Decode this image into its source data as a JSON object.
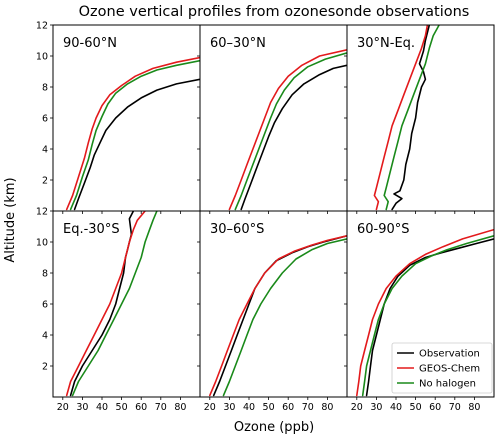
{
  "chart_data": {
    "type": "line",
    "title": "Ozone vertical profiles from ozonesonde observations",
    "xlabel": "Ozone (ppb)",
    "ylabel": "Altitude (km)",
    "xlim": [
      15,
      90
    ],
    "ylim": [
      0,
      12
    ],
    "xticks": [
      "20",
      "30",
      "40",
      "50",
      "60",
      "70",
      "80"
    ],
    "yticks": [
      "2",
      "4",
      "6",
      "8",
      "10",
      "12"
    ],
    "grid": false,
    "legend": {
      "placement": "lower-right of bottom-right panel",
      "entries": [
        {
          "name": "Observation",
          "color": "#000000"
        },
        {
          "name": "GEOS-Chem",
          "color": "#e31a1c"
        },
        {
          "name": "No halogen",
          "color": "#1a8a1a"
        }
      ]
    },
    "panels": [
      {
        "label": "90-60°N",
        "series": [
          {
            "name": "Observation",
            "color": "#000000",
            "x": [
              26,
              28,
              31,
              34,
              36,
              39,
              42,
              47,
              53,
              60,
              68,
              78,
              90
            ],
            "y": [
              0.1,
              0.8,
              1.8,
              2.8,
              3.6,
              4.4,
              5.2,
              6.0,
              6.7,
              7.3,
              7.8,
              8.2,
              8.5
            ]
          },
          {
            "name": "GEOS-Chem",
            "color": "#e31a1c",
            "x": [
              22,
              25,
              28,
              31,
              33,
              35,
              37,
              40,
              44,
              50,
              57,
              66,
              78,
              90
            ],
            "y": [
              0.1,
              1.0,
              2.2,
              3.4,
              4.4,
              5.3,
              6.0,
              6.8,
              7.5,
              8.1,
              8.7,
              9.2,
              9.6,
              9.9
            ]
          },
          {
            "name": "No halogen",
            "color": "#1a8a1a",
            "x": [
              24,
              27,
              30,
              33,
              35,
              37,
              40,
              43,
              47,
              53,
              60,
              68,
              78,
              90
            ],
            "y": [
              0.1,
              1.0,
              2.2,
              3.3,
              4.3,
              5.2,
              6.1,
              6.9,
              7.6,
              8.2,
              8.7,
              9.1,
              9.4,
              9.7
            ]
          }
        ]
      },
      {
        "label": "60–30°N",
        "series": [
          {
            "name": "Observation",
            "color": "#000000",
            "x": [
              36,
              38,
              41,
              44,
              47,
              50,
              53,
              57,
              62,
              68,
              76,
              83,
              90
            ],
            "y": [
              0.1,
              0.8,
              1.8,
              2.8,
              3.8,
              4.8,
              5.7,
              6.6,
              7.5,
              8.2,
              8.8,
              9.2,
              9.4
            ]
          },
          {
            "name": "GEOS-Chem",
            "color": "#e31a1c",
            "x": [
              30,
              33,
              36,
              39,
              42,
              45,
              48,
              51,
              55,
              60,
              67,
              76,
              90
            ],
            "y": [
              0.1,
              1.0,
              2.0,
              3.0,
              4.0,
              5.0,
              6.0,
              7.0,
              7.9,
              8.7,
              9.4,
              10.0,
              10.4
            ]
          },
          {
            "name": "No halogen",
            "color": "#1a8a1a",
            "x": [
              33,
              36,
              39,
              42,
              45,
              48,
              51,
              54,
              58,
              63,
              70,
              79,
              90
            ],
            "y": [
              0.1,
              1.0,
              2.0,
              3.0,
              4.0,
              5.0,
              6.0,
              6.9,
              7.8,
              8.6,
              9.3,
              9.8,
              10.2
            ]
          }
        ]
      },
      {
        "label": "30°N-Eq.",
        "series": [
          {
            "name": "Observation",
            "color": "#000000",
            "x": [
              38,
              40,
              43,
              39,
              42,
              44,
              45,
              47,
              48,
              50,
              51,
              53,
              55,
              54,
              52,
              54,
              55,
              57
            ],
            "y": [
              0.1,
              0.5,
              0.8,
              1.1,
              1.3,
              2.0,
              3.0,
              4.0,
              5.0,
              6.0,
              7.0,
              8.0,
              8.5,
              9.0,
              9.5,
              10.3,
              11.0,
              12.0
            ]
          },
          {
            "name": "GEOS-Chem",
            "color": "#e31a1c",
            "x": [
              30,
              31,
              29,
              30,
              32,
              34,
              36,
              38,
              41,
              44,
              47,
              50,
              53,
              55,
              56
            ],
            "y": [
              0.1,
              0.6,
              1.0,
              1.5,
              2.5,
              3.5,
              4.5,
              5.5,
              6.5,
              7.5,
              8.5,
              9.5,
              10.5,
              11.3,
              12.0
            ]
          },
          {
            "name": "No halogen",
            "color": "#1a8a1a",
            "x": [
              35,
              36,
              34,
              35,
              37,
              39,
              41,
              43,
              46,
              49,
              52,
              55,
              57,
              59,
              62
            ],
            "y": [
              0.1,
              0.6,
              1.0,
              1.5,
              2.5,
              3.5,
              4.5,
              5.5,
              6.5,
              7.5,
              8.5,
              9.5,
              10.5,
              11.3,
              12.0
            ]
          }
        ]
      },
      {
        "label": "Eq.-30°S",
        "series": [
          {
            "name": "Observation",
            "color": "#000000",
            "x": [
              24,
              26,
              30,
              35,
              40,
              44,
              47,
              49,
              51,
              52,
              53,
              54,
              55,
              54,
              56
            ],
            "y": [
              0.1,
              1.0,
              2.0,
              3.0,
              4.0,
              5.0,
              6.0,
              7.0,
              8.0,
              9.0,
              9.5,
              10.0,
              10.5,
              11.5,
              12.0
            ]
          },
          {
            "name": "GEOS-Chem",
            "color": "#e31a1c",
            "x": [
              22,
              24,
              28,
              32,
              36,
              40,
              44,
              47,
              50,
              52,
              54,
              56,
              58,
              62
            ],
            "y": [
              0.1,
              1.0,
              2.0,
              3.0,
              4.0,
              5.0,
              6.0,
              7.0,
              8.0,
              9.0,
              10.0,
              10.8,
              11.4,
              12.0
            ]
          },
          {
            "name": "No halogen",
            "color": "#1a8a1a",
            "x": [
              25,
              28,
              33,
              38,
              42,
              46,
              50,
              54,
              57,
              60,
              62,
              64,
              66,
              68
            ],
            "y": [
              0.1,
              1.0,
              2.0,
              3.0,
              4.0,
              5.0,
              6.0,
              7.0,
              8.0,
              9.0,
              10.0,
              10.7,
              11.4,
              12.0
            ]
          }
        ]
      },
      {
        "label": "30–60°S",
        "series": [
          {
            "name": "Observation",
            "color": "#000000",
            "x": [
              22,
              25,
              28,
              31,
              34,
              37,
              40,
              43,
              48,
              54,
              62,
              70,
              78,
              90
            ],
            "y": [
              0.1,
              1.0,
              2.0,
              3.0,
              4.0,
              5.0,
              6.0,
              7.0,
              8.0,
              8.8,
              9.3,
              9.7,
              10.0,
              10.4
            ]
          },
          {
            "name": "GEOS-Chem",
            "color": "#e31a1c",
            "x": [
              20,
              23,
              26,
              29,
              32,
              35,
              39,
              43,
              48,
              55,
              63,
              72,
              80,
              90
            ],
            "y": [
              0.1,
              1.0,
              2.0,
              3.0,
              4.0,
              5.0,
              6.0,
              7.0,
              8.0,
              8.9,
              9.4,
              9.8,
              10.1,
              10.4
            ]
          },
          {
            "name": "No halogen",
            "color": "#1a8a1a",
            "x": [
              27,
              30,
              33,
              36,
              39,
              42,
              46,
              51,
              57,
              64,
              72,
              80,
              90
            ],
            "y": [
              0.1,
              1.0,
              2.0,
              3.0,
              4.0,
              5.0,
              6.0,
              7.0,
              8.0,
              8.9,
              9.5,
              9.9,
              10.2
            ]
          }
        ]
      },
      {
        "label": "60-90°S",
        "series": [
          {
            "name": "Observation",
            "color": "#000000",
            "x": [
              25,
              26,
              27,
              28,
              30,
              32,
              34,
              37,
              41,
              47,
              55,
              63,
              72,
              81,
              90
            ],
            "y": [
              0.1,
              1.0,
              2.0,
              3.0,
              4.0,
              5.0,
              6.0,
              7.0,
              7.8,
              8.5,
              9.0,
              9.3,
              9.6,
              9.9,
              10.2
            ]
          },
          {
            "name": "GEOS-Chem",
            "color": "#e31a1c",
            "x": [
              20,
              21,
              22,
              24,
              26,
              28,
              31,
              35,
              40,
              47,
              55,
              64,
              74,
              90
            ],
            "y": [
              0.1,
              1.0,
              2.0,
              3.0,
              4.0,
              5.0,
              6.0,
              7.0,
              7.8,
              8.6,
              9.2,
              9.7,
              10.2,
              10.8
            ]
          },
          {
            "name": "No halogen",
            "color": "#1a8a1a",
            "x": [
              23,
              24,
              25,
              27,
              29,
              31,
              34,
              38,
              43,
              50,
              58,
              66,
              76,
              90
            ],
            "y": [
              0.1,
              1.0,
              2.0,
              3.0,
              4.0,
              5.0,
              6.0,
              7.0,
              7.8,
              8.6,
              9.1,
              9.5,
              9.9,
              10.4
            ]
          }
        ]
      }
    ]
  }
}
